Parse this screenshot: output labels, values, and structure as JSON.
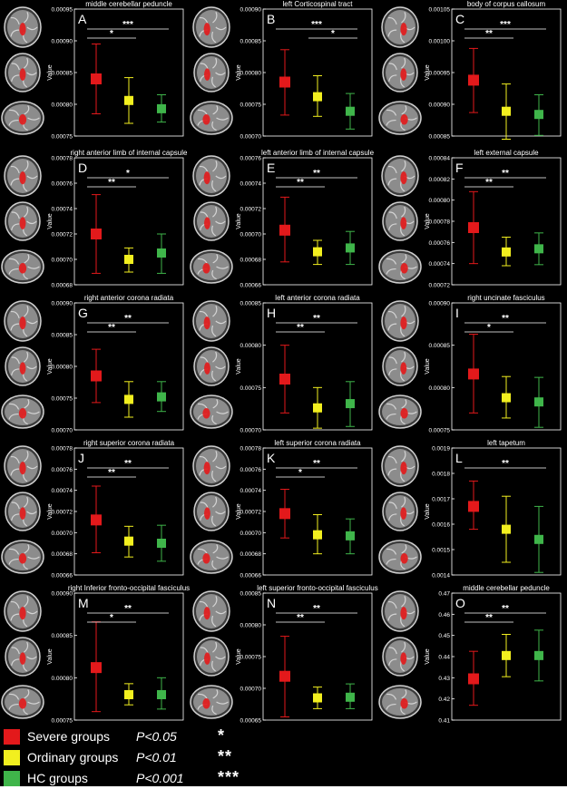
{
  "chart_data": [
    {
      "type": "scatter",
      "letter": "A",
      "title": "middle cerebellar peduncle",
      "ylabel": "Value",
      "ylim": [
        0.00075,
        0.00095
      ],
      "yticks": [
        "0.00075",
        "0.00080",
        "0.00085",
        "0.00090",
        "0.00095"
      ],
      "means": [
        0.00084,
        0.000806,
        0.000793
      ],
      "errors": [
        [
          0.000785,
          0.000895
        ],
        [
          0.00077,
          0.000842
        ],
        [
          0.000772,
          0.000815
        ]
      ],
      "significance": [
        {
          "label": "*",
          "from": 0,
          "to": 1,
          "level": 1
        },
        {
          "label": "***",
          "from": 0,
          "to": 2,
          "level": 2
        }
      ]
    },
    {
      "type": "scatter",
      "letter": "B",
      "title": "left Corticospinal tract",
      "ylabel": "Value",
      "ylim": [
        0.0007,
        0.0009
      ],
      "yticks": [
        "0.00070",
        "0.00075",
        "0.00080",
        "0.00085",
        "0.00090"
      ],
      "means": [
        0.000785,
        0.000762,
        0.000739
      ],
      "errors": [
        [
          0.000733,
          0.000836
        ],
        [
          0.000731,
          0.000795
        ],
        [
          0.000711,
          0.000767
        ]
      ],
      "significance": [
        {
          "label": "*",
          "from": 1,
          "to": 2,
          "level": 1
        },
        {
          "label": "***",
          "from": 0,
          "to": 2,
          "level": 2
        }
      ]
    },
    {
      "type": "scatter",
      "letter": "C",
      "title": "body of corpus callosum",
      "ylabel": "Value",
      "ylim": [
        0.00085,
        0.00105
      ],
      "yticks": [
        "0.00085",
        "0.00090",
        "0.00095",
        "0.00100",
        "0.00105"
      ],
      "means": [
        0.000938,
        0.000889,
        0.000884
      ],
      "errors": [
        [
          0.000887,
          0.000988
        ],
        [
          0.000845,
          0.000932
        ],
        [
          0.000851,
          0.000915
        ]
      ],
      "significance": [
        {
          "label": "**",
          "from": 0,
          "to": 1,
          "level": 1
        },
        {
          "label": "***",
          "from": 0,
          "to": 2,
          "level": 2
        }
      ]
    },
    {
      "type": "scatter",
      "letter": "D",
      "title": "right anterior limb of internal capsule",
      "ylabel": "Value",
      "ylim": [
        0.00068,
        0.00078
      ],
      "yticks": [
        "0.00068",
        "0.00070",
        "0.00072",
        "0.00074",
        "0.00076",
        "0.00078"
      ],
      "means": [
        0.00072,
        0.0007,
        0.000705
      ],
      "errors": [
        [
          0.000689,
          0.000751
        ],
        [
          0.00069,
          0.000709
        ],
        [
          0.000689,
          0.00072
        ]
      ],
      "significance": [
        {
          "label": "**",
          "from": 0,
          "to": 1,
          "level": 1
        },
        {
          "label": "*",
          "from": 0,
          "to": 2,
          "level": 2
        }
      ]
    },
    {
      "type": "scatter",
      "letter": "E",
      "title": "left anterior limb of internal capsule",
      "ylabel": "Value",
      "ylim": [
        0.00066,
        0.00076
      ],
      "yticks": [
        "0.00066",
        "0.00068",
        "0.00070",
        "0.00072",
        "0.00074",
        "0.00076"
      ],
      "means": [
        0.000703,
        0.000686,
        0.000689
      ],
      "errors": [
        [
          0.000678,
          0.000729
        ],
        [
          0.000676,
          0.000695
        ],
        [
          0.000676,
          0.000702
        ]
      ],
      "significance": [
        {
          "label": "**",
          "from": 0,
          "to": 1,
          "level": 1
        },
        {
          "label": "**",
          "from": 0,
          "to": 2,
          "level": 2
        }
      ]
    },
    {
      "type": "scatter",
      "letter": "F",
      "title": "left external capsule",
      "ylabel": "Value",
      "ylim": [
        0.00072,
        0.00084
      ],
      "yticks": [
        "0.00072",
        "0.00074",
        "0.00076",
        "0.00078",
        "0.00080",
        "0.00082",
        "0.00084"
      ],
      "means": [
        0.000774,
        0.000751,
        0.000754
      ],
      "errors": [
        [
          0.00074,
          0.000808
        ],
        [
          0.000738,
          0.000765
        ],
        [
          0.000739,
          0.000769
        ]
      ],
      "significance": [
        {
          "label": "**",
          "from": 0,
          "to": 1,
          "level": 1
        },
        {
          "label": "**",
          "from": 0,
          "to": 2,
          "level": 2
        }
      ]
    },
    {
      "type": "scatter",
      "letter": "G",
      "title": "right anterior corona radiata",
      "ylabel": "Value",
      "ylim": [
        0.0007,
        0.0009
      ],
      "yticks": [
        "0.00070",
        "0.00075",
        "0.00080",
        "0.00085",
        "0.00090"
      ],
      "means": [
        0.000785,
        0.000748,
        0.000752
      ],
      "errors": [
        [
          0.000743,
          0.000827
        ],
        [
          0.00072,
          0.000776
        ],
        [
          0.000729,
          0.000776
        ]
      ],
      "significance": [
        {
          "label": "**",
          "from": 0,
          "to": 1,
          "level": 1
        },
        {
          "label": "**",
          "from": 0,
          "to": 2,
          "level": 2
        }
      ]
    },
    {
      "type": "scatter",
      "letter": "H",
      "title": "left anterior corona radiata",
      "ylabel": "Value",
      "ylim": [
        0.0007,
        0.00085
      ],
      "yticks": [
        "0.00070",
        "0.00075",
        "0.00080",
        "0.00085"
      ],
      "means": [
        0.00076,
        0.000726,
        0.000731
      ],
      "errors": [
        [
          0.00072,
          0.0008
        ],
        [
          0.000702,
          0.00075
        ],
        [
          0.000704,
          0.000757
        ]
      ],
      "significance": [
        {
          "label": "**",
          "from": 0,
          "to": 1,
          "level": 1
        },
        {
          "label": "**",
          "from": 0,
          "to": 2,
          "level": 2
        }
      ]
    },
    {
      "type": "scatter",
      "letter": "I",
      "title": "right uncinate fasciculus",
      "ylabel": "Value",
      "ylim": [
        0.00075,
        0.0009
      ],
      "yticks": [
        "0.00075",
        "0.00080",
        "0.00085",
        "0.00090"
      ],
      "means": [
        0.000816,
        0.000788,
        0.000783
      ],
      "errors": [
        [
          0.00077,
          0.000863
        ],
        [
          0.000764,
          0.000813
        ],
        [
          0.000753,
          0.000812
        ]
      ],
      "significance": [
        {
          "label": "*",
          "from": 0,
          "to": 1,
          "level": 1
        },
        {
          "label": "**",
          "from": 0,
          "to": 2,
          "level": 2
        }
      ]
    },
    {
      "type": "scatter",
      "letter": "J",
      "title": "right superior corona radiata",
      "ylabel": "Value",
      "ylim": [
        0.00066,
        0.00078
      ],
      "yticks": [
        "0.00066",
        "0.00068",
        "0.00070",
        "0.00072",
        "0.00074",
        "0.00076",
        "0.00078"
      ],
      "means": [
        0.000712,
        0.000692,
        0.00069
      ],
      "errors": [
        [
          0.000681,
          0.000744
        ],
        [
          0.000677,
          0.000706
        ],
        [
          0.000673,
          0.000707
        ]
      ],
      "significance": [
        {
          "label": "**",
          "from": 0,
          "to": 1,
          "level": 1
        },
        {
          "label": "**",
          "from": 0,
          "to": 2,
          "level": 2
        }
      ]
    },
    {
      "type": "scatter",
      "letter": "K",
      "title": "left superior corona radiata",
      "ylabel": "Value",
      "ylim": [
        0.00066,
        0.00078
      ],
      "yticks": [
        "0.00066",
        "0.00068",
        "0.00070",
        "0.00072",
        "0.00074",
        "0.00076",
        "0.00078"
      ],
      "means": [
        0.000718,
        0.000698,
        0.000697
      ],
      "errors": [
        [
          0.000695,
          0.000741
        ],
        [
          0.00068,
          0.000717
        ],
        [
          0.00068,
          0.000713
        ]
      ],
      "significance": [
        {
          "label": "*",
          "from": 0,
          "to": 1,
          "level": 1
        },
        {
          "label": "**",
          "from": 0,
          "to": 2,
          "level": 2
        }
      ]
    },
    {
      "type": "scatter",
      "letter": "L",
      "title": "left tapetum",
      "ylabel": "Value",
      "ylim": [
        0.0014,
        0.0019
      ],
      "yticks": [
        "0.0014",
        "0.0015",
        "0.0016",
        "0.0017",
        "0.0018",
        "0.0019"
      ],
      "means": [
        0.00167,
        0.00158,
        0.00154
      ],
      "errors": [
        [
          0.00158,
          0.00177
        ],
        [
          0.00145,
          0.00171
        ],
        [
          0.00141,
          0.00167
        ]
      ],
      "significance": [
        {
          "label": "**",
          "from": 0,
          "to": 2,
          "level": 1
        }
      ]
    },
    {
      "type": "scatter",
      "letter": "M",
      "title": "right Inferior fronto-occipital fasciculus",
      "ylabel": "Value",
      "ylim": [
        0.00075,
        0.0009
      ],
      "yticks": [
        "0.00075",
        "0.00080",
        "0.00085",
        "0.00090"
      ],
      "means": [
        0.000812,
        0.00078,
        0.00078
      ],
      "errors": [
        [
          0.00076,
          0.000866
        ],
        [
          0.000768,
          0.000793
        ],
        [
          0.000763,
          0.0008
        ]
      ],
      "significance": [
        {
          "label": "*",
          "from": 0,
          "to": 1,
          "level": 1
        },
        {
          "label": "**",
          "from": 0,
          "to": 2,
          "level": 2
        }
      ]
    },
    {
      "type": "scatter",
      "letter": "N",
      "title": "left superior fronto-occipital fasciculus",
      "ylabel": "Value",
      "ylim": [
        0.00065,
        0.00085
      ],
      "yticks": [
        "0.00065",
        "0.00070",
        "0.00075",
        "0.00080",
        "0.00085"
      ],
      "means": [
        0.000719,
        0.000685,
        0.000686
      ],
      "errors": [
        [
          0.000655,
          0.000782
        ],
        [
          0.000668,
          0.000702
        ],
        [
          0.000668,
          0.000707
        ]
      ],
      "significance": [
        {
          "label": "**",
          "from": 0,
          "to": 1,
          "level": 1
        },
        {
          "label": "**",
          "from": 0,
          "to": 2,
          "level": 2
        }
      ]
    },
    {
      "type": "scatter",
      "letter": "O",
      "title": "middle cerebellar peduncle",
      "ylabel": "Value",
      "ylim": [
        0.41,
        0.47
      ],
      "yticks": [
        "0.41",
        "0.42",
        "0.43",
        "0.44",
        "0.45",
        "0.46",
        "0.47"
      ],
      "means": [
        0.4295,
        0.4405,
        0.4405
      ],
      "errors": [
        [
          0.417,
          0.4425
        ],
        [
          0.4305,
          0.4505
        ],
        [
          0.4285,
          0.4525
        ]
      ],
      "significance": [
        {
          "label": "**",
          "from": 0,
          "to": 1,
          "level": 1
        },
        {
          "label": "**",
          "from": 0,
          "to": 2,
          "level": 2
        }
      ]
    }
  ],
  "legend": {
    "groups": [
      {
        "label": "Severe groups",
        "color": "#e3191b"
      },
      {
        "label": "Ordinary groups",
        "color": "#f2ef1f"
      },
      {
        "label": "HC groups",
        "color": "#3fb54a"
      }
    ],
    "pvalues": [
      {
        "p": "P<0.05",
        "stars": "*"
      },
      {
        "p": "P<0.01",
        "stars": "**"
      },
      {
        "p": "P<0.001",
        "stars": "***"
      }
    ]
  },
  "colors": {
    "severe": "#e3191b",
    "ordinary": "#f2ef1f",
    "hc": "#3fb54a",
    "background": "#000000",
    "text": "#ffffff"
  },
  "brain_icons": [
    "coronal-slice-icon",
    "axial-slice-icon",
    "sagittal-slice-icon"
  ]
}
